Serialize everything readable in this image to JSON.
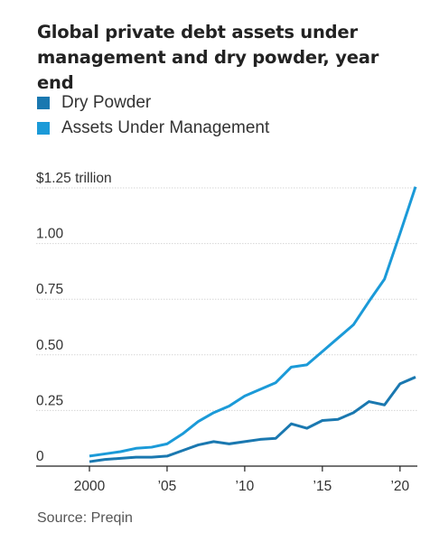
{
  "title": "Global private debt assets under management and dry powder, year end",
  "source": "Source: Preqin",
  "legend": [
    {
      "label": "Dry Powder",
      "color": "#1a78b0"
    },
    {
      "label": "Assets Under Management",
      "color": "#1b9ad8"
    }
  ],
  "chart_data": {
    "type": "line",
    "title": "Global private debt assets under management and dry powder, year end",
    "xlabel": "",
    "ylabel": "",
    "xlim": [
      2000,
      2021
    ],
    "ylim": [
      0,
      1.25
    ],
    "grid": true,
    "legend_position": "top-left",
    "x": [
      2000,
      2001,
      2002,
      2003,
      2004,
      2005,
      2006,
      2007,
      2008,
      2009,
      2010,
      2011,
      2012,
      2013,
      2014,
      2015,
      2016,
      2017,
      2018,
      2019,
      2020,
      2021
    ],
    "series": [
      {
        "name": "Dry Powder",
        "color": "#1a78b0",
        "values": [
          0.02,
          0.03,
          0.035,
          0.04,
          0.04,
          0.045,
          0.07,
          0.095,
          0.11,
          0.1,
          0.11,
          0.12,
          0.125,
          0.19,
          0.17,
          0.205,
          0.21,
          0.24,
          0.29,
          0.275,
          0.37,
          0.4
        ]
      },
      {
        "name": "Assets Under Management",
        "color": "#1b9ad8",
        "values": [
          0.045,
          0.055,
          0.065,
          0.08,
          0.085,
          0.1,
          0.145,
          0.2,
          0.24,
          0.27,
          0.315,
          0.345,
          0.375,
          0.445,
          0.455,
          0.515,
          0.575,
          0.635,
          0.74,
          0.84,
          1.045,
          1.255
        ]
      }
    ],
    "y_ticks": [
      {
        "value": 0,
        "label": "0"
      },
      {
        "value": 0.25,
        "label": "0.25"
      },
      {
        "value": 0.5,
        "label": "0.50"
      },
      {
        "value": 0.75,
        "label": "0.75"
      },
      {
        "value": 1.0,
        "label": "1.00"
      },
      {
        "value": 1.25,
        "label": "$1.25 trillion"
      }
    ],
    "x_ticks": [
      {
        "value": 2000,
        "label": "2000"
      },
      {
        "value": 2005,
        "label": "’05"
      },
      {
        "value": 2010,
        "label": "’10"
      },
      {
        "value": 2015,
        "label": "’15"
      },
      {
        "value": 2020,
        "label": "’20"
      }
    ]
  }
}
